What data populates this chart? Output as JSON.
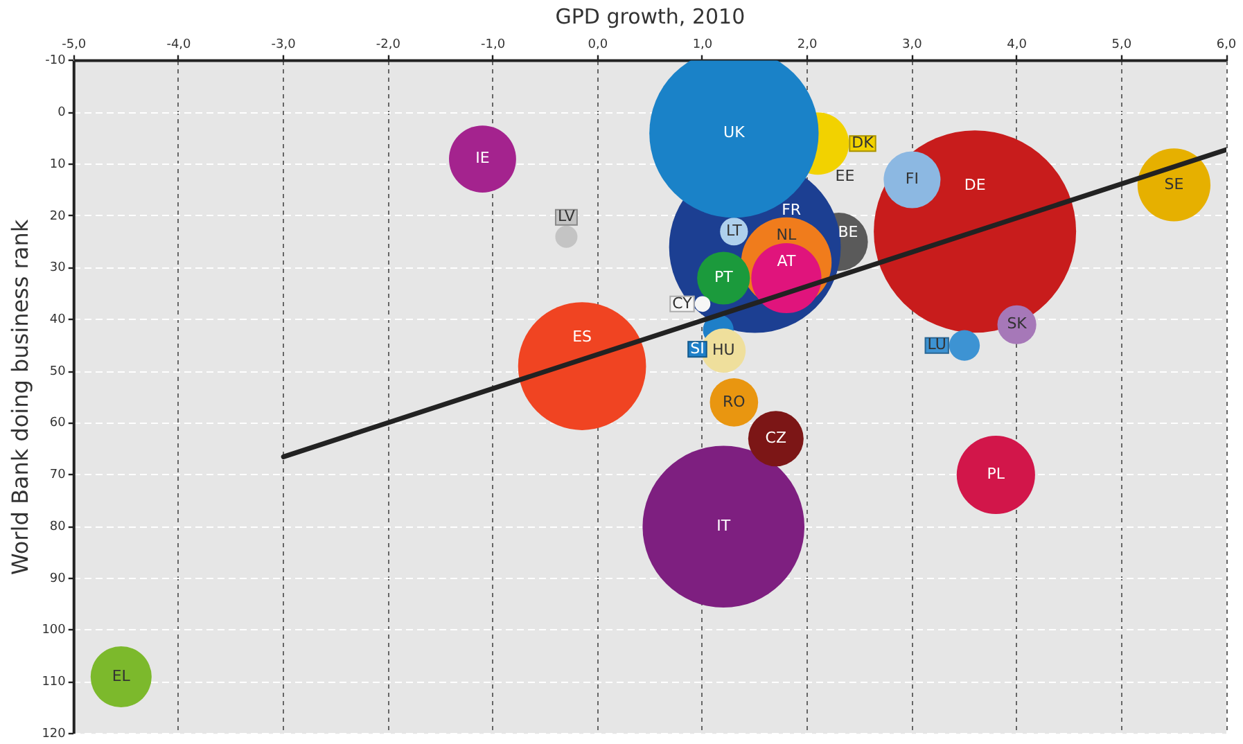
{
  "chart_data": {
    "type": "bubble",
    "xlabel": "GPD growth, 2010",
    "ylabel": "World Bank doing business rank",
    "xlim": [
      -5,
      6
    ],
    "xticks": [
      {
        "value": -5,
        "label": "-5,0"
      },
      {
        "value": -4,
        "label": "-4,0"
      },
      {
        "value": -3,
        "label": "-3,0"
      },
      {
        "value": -2,
        "label": "-2,0"
      },
      {
        "value": -1,
        "label": "-1,0"
      },
      {
        "value": 0,
        "label": "0,0"
      },
      {
        "value": 1,
        "label": "1,0"
      },
      {
        "value": 2,
        "label": "2,0"
      },
      {
        "value": 3,
        "label": "3,0"
      },
      {
        "value": 4,
        "label": "4,0"
      },
      {
        "value": 5,
        "label": "5,0"
      },
      {
        "value": 6,
        "label": "6,0"
      }
    ],
    "ylim": [
      120,
      -10
    ],
    "yticks": [
      -10,
      0,
      10,
      20,
      30,
      40,
      50,
      60,
      70,
      80,
      90,
      100,
      110,
      120
    ],
    "grid": true,
    "series": [
      {
        "name": "DE",
        "color": "#c81c1c",
        "x": [
          3.6
        ],
        "values": [
          23
        ],
        "sizes": [
          1
        ]
      },
      {
        "name": "FI",
        "color": "#8cb8e2",
        "x": [
          3.0
        ],
        "values": [
          13
        ],
        "sizes": [
          0.079
        ]
      },
      {
        "name": "SK",
        "color": "#a678b8",
        "x": [
          4.0
        ],
        "values": [
          41
        ],
        "sizes": [
          0.037
        ]
      },
      {
        "name": "LU",
        "color": "#3d93d3",
        "x": [
          3.5
        ],
        "values": [
          45
        ],
        "sizes": [
          0.023
        ]
      },
      {
        "name": "SE",
        "color": "#e6b000",
        "x": [
          5.5
        ],
        "values": [
          14
        ],
        "sizes": [
          0.13
        ]
      },
      {
        "name": "PL",
        "color": "#d2164a",
        "x": [
          3.8
        ],
        "values": [
          70
        ],
        "sizes": [
          0.15
        ]
      },
      {
        "name": "IT",
        "color": "#7e1f80",
        "x": [
          1.2
        ],
        "values": [
          80
        ],
        "sizes": [
          0.64
        ]
      },
      {
        "name": "CZ",
        "color": "#7c1616",
        "x": [
          1.7
        ],
        "values": [
          63
        ],
        "sizes": [
          0.075
        ]
      },
      {
        "name": "RO",
        "color": "#e99610",
        "x": [
          1.3
        ],
        "values": [
          56
        ],
        "sizes": [
          0.057
        ]
      },
      {
        "name": "BE",
        "color": "#5a5a5a",
        "x": [
          2.3
        ],
        "values": [
          25
        ],
        "sizes": [
          0.083
        ]
      },
      {
        "name": "DK",
        "color": "#f2d200",
        "x": [
          2.1
        ],
        "values": [
          6
        ],
        "sizes": [
          0.095
        ]
      },
      {
        "name": "FR",
        "color": "#1c3f92",
        "x": [
          1.5
        ],
        "values": [
          26
        ],
        "sizes": [
          0.72
        ]
      },
      {
        "name": "NL",
        "color": "#f07c1c",
        "x": [
          1.8
        ],
        "values": [
          29
        ],
        "sizes": [
          0.2
        ]
      },
      {
        "name": "PT",
        "color": "#1b9a3c",
        "x": [
          1.2
        ],
        "values": [
          32
        ],
        "sizes": [
          0.068
        ]
      },
      {
        "name": "AT",
        "color": "#e0147c",
        "x": [
          1.8
        ],
        "values": [
          32
        ],
        "sizes": [
          0.12
        ]
      },
      {
        "name": "LT",
        "color": "#aed0ec",
        "x": [
          1.3
        ],
        "values": [
          23
        ],
        "sizes": [
          0.019
        ]
      },
      {
        "name": "SI",
        "color": "#1e7fc8",
        "x": [
          1.15
        ],
        "values": [
          42
        ],
        "sizes": [
          0.023
        ]
      },
      {
        "name": "HU",
        "color": "#efdf9c",
        "x": [
          1.2
        ],
        "values": [
          46
        ],
        "sizes": [
          0.048
        ]
      },
      {
        "name": "CY",
        "color": "#f6f6f6",
        "x": [
          1.0
        ],
        "values": [
          37
        ],
        "sizes": [
          0.006
        ]
      },
      {
        "name": "UK",
        "color": "#1a82c8",
        "x": [
          1.3
        ],
        "values": [
          4
        ],
        "sizes": [
          0.7
        ]
      },
      {
        "name": "ES",
        "color": "#f04422",
        "x": [
          -0.15
        ],
        "values": [
          49
        ],
        "sizes": [
          0.4
        ]
      },
      {
        "name": "IE",
        "color": "#a4238e",
        "x": [
          -1.1
        ],
        "values": [
          9
        ],
        "sizes": [
          0.11
        ]
      },
      {
        "name": "LV",
        "color": "#c4c4c4",
        "x": [
          -0.3
        ],
        "values": [
          24
        ],
        "sizes": [
          0.012
        ]
      },
      {
        "name": "EL",
        "color": "#7cb92c",
        "x": [
          -4.55
        ],
        "values": [
          109
        ],
        "sizes": [
          0.091
        ]
      },
      {
        "type": "line",
        "color": "#222222",
        "x": [
          -3,
          6
        ],
        "values": [
          66.5,
          7.2
        ]
      }
    ],
    "annotations": [
      "EE"
    ]
  }
}
